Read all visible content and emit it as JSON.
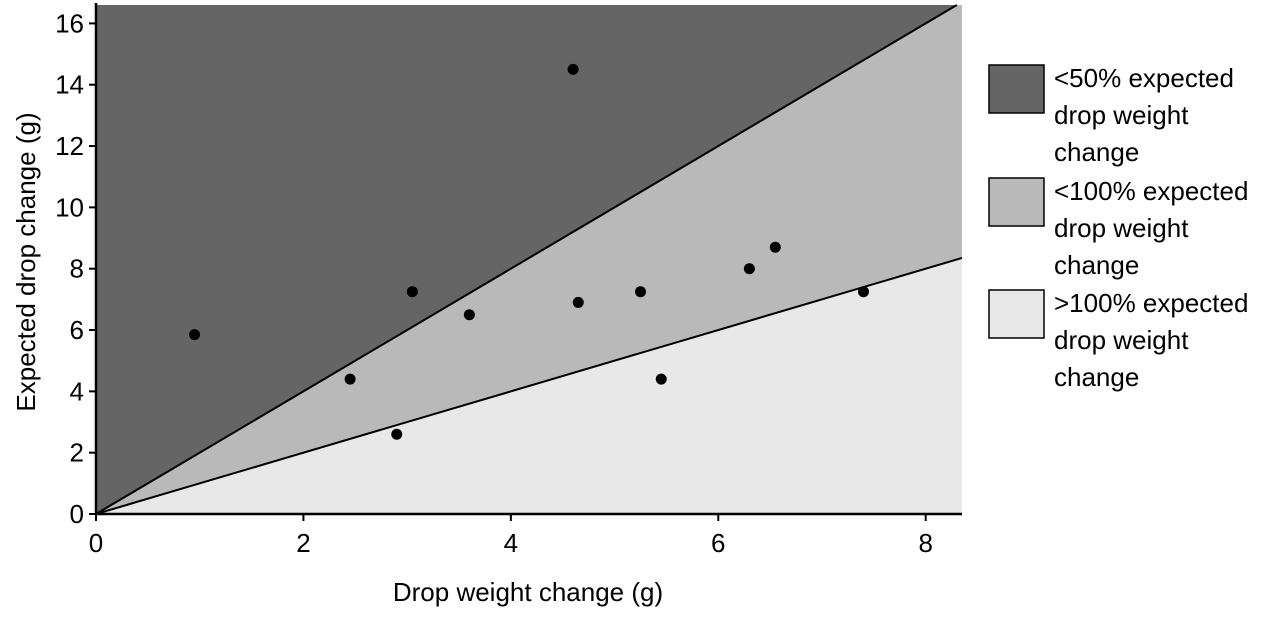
{
  "colors": {
    "background": "#ffffff",
    "region_under_50": "#656565",
    "region_under_100": "#b9b9b9",
    "region_over_100": "#e8e8e8",
    "line": "#000000",
    "point": "#000000"
  },
  "chart_data": {
    "type": "scatter",
    "title": "",
    "xlabel": "Drop weight change (g)",
    "ylabel": "Expected drop change (g)",
    "xlim": [
      0,
      8.35
    ],
    "ylim": [
      0,
      16.6
    ],
    "x_ticks": [
      0,
      2,
      4,
      6,
      8
    ],
    "y_ticks": [
      0,
      2,
      4,
      6,
      8,
      10,
      12,
      14,
      16
    ],
    "x_tick_labels": [
      "0",
      "2",
      "4",
      "6",
      "8"
    ],
    "y_tick_labels": [
      "0",
      "2",
      "4",
      "6",
      "8",
      "10",
      "12",
      "14",
      "16"
    ],
    "grid": false,
    "legend_position": "right",
    "reference_lines": [
      {
        "description": "y = 2x",
        "slope": 2
      },
      {
        "description": "y = x",
        "slope": 1
      }
    ],
    "legend": [
      {
        "lines": [
          "<50% expected",
          "drop weight",
          "change"
        ],
        "color": "#656565"
      },
      {
        "lines": [
          "<100% expected",
          "drop weight",
          "change"
        ],
        "color": "#b9b9b9"
      },
      {
        "lines": [
          ">100% expected",
          "drop weight",
          "change"
        ],
        "color": "#e8e8e8"
      }
    ],
    "points": [
      {
        "x": 0.95,
        "y": 5.85
      },
      {
        "x": 2.45,
        "y": 4.4
      },
      {
        "x": 2.9,
        "y": 2.6
      },
      {
        "x": 3.05,
        "y": 7.25
      },
      {
        "x": 3.6,
        "y": 6.5
      },
      {
        "x": 4.6,
        "y": 14.5
      },
      {
        "x": 4.65,
        "y": 6.9
      },
      {
        "x": 5.25,
        "y": 7.25
      },
      {
        "x": 5.45,
        "y": 4.4
      },
      {
        "x": 6.3,
        "y": 8.0
      },
      {
        "x": 6.55,
        "y": 8.7
      },
      {
        "x": 7.4,
        "y": 7.25
      }
    ]
  }
}
